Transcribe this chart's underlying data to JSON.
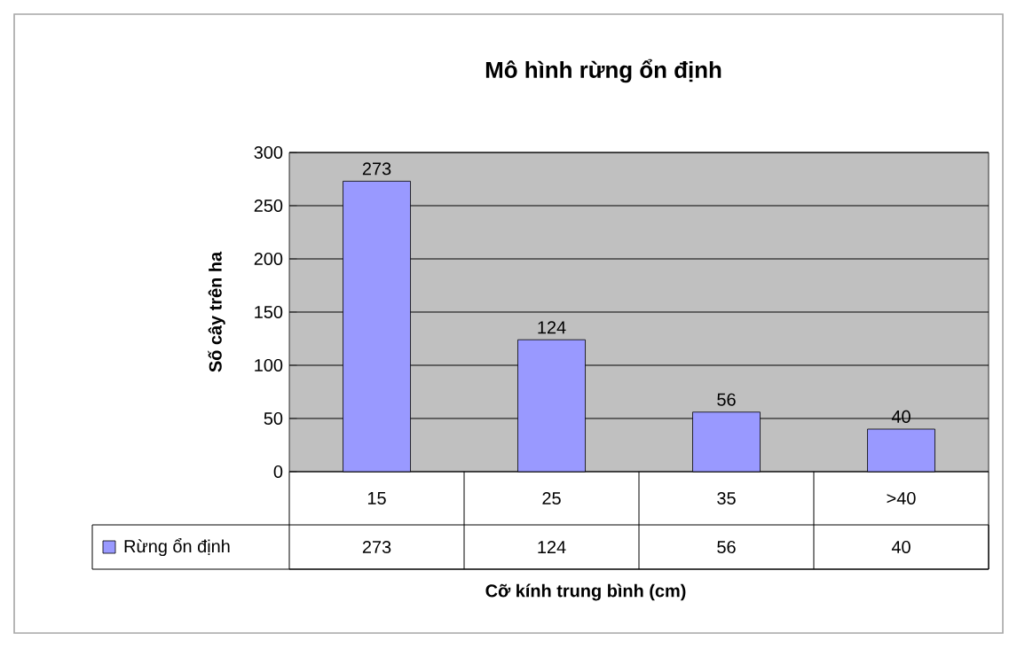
{
  "chart_data": {
    "type": "bar",
    "title": "Mô hình rừng ổn định",
    "xlabel": "Cỡ kính trung bình (cm)",
    "ylabel": "Số cây trên ha",
    "categories": [
      "15",
      "25",
      "35",
      ">40"
    ],
    "series": [
      {
        "name": "Rừng ổn định",
        "color": "#9999ff",
        "values": [
          273,
          124,
          56,
          40
        ],
        "value_labels": [
          "273",
          "124",
          "56",
          "40"
        ]
      }
    ],
    "ylim": [
      0,
      300
    ],
    "yticks": [
      0,
      50,
      100,
      150,
      200,
      250,
      300
    ],
    "grid": "y",
    "legend": "bottom"
  }
}
